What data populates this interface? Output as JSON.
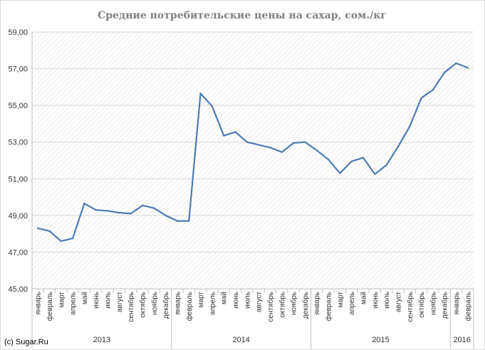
{
  "chart_data": {
    "type": "line",
    "title": "Средние потребительские цены на сахар, сом./кг",
    "xlabel": "",
    "ylabel": "",
    "ylim": [
      45,
      59
    ],
    "y_ticks": [
      "45,00",
      "47,00",
      "49,00",
      "51,00",
      "53,00",
      "55,00",
      "57,00",
      "59,00"
    ],
    "categories": [
      "январь",
      "февраль",
      "март",
      "апрель",
      "май",
      "июнь",
      "июль",
      "август",
      "сентябрь",
      "октябрь",
      "ноябрь",
      "декабрь",
      "январь",
      "февраль",
      "март",
      "апрель",
      "май",
      "июнь",
      "июль",
      "август",
      "сентябрь",
      "октябрь",
      "ноябрь",
      "декабрь",
      "январь",
      "февраль",
      "март",
      "апрель",
      "май",
      "июнь",
      "июль",
      "август",
      "сентябрь",
      "октябрь",
      "ноябрь",
      "декабрь",
      "январь",
      "февраль"
    ],
    "year_groups": [
      {
        "label": "2013",
        "count": 12
      },
      {
        "label": "2014",
        "count": 12
      },
      {
        "label": "2015",
        "count": 12
      },
      {
        "label": "2016",
        "count": 2
      }
    ],
    "series": [
      {
        "values": [
          48.3,
          48.15,
          47.6,
          47.75,
          49.65,
          49.3,
          49.25,
          49.15,
          49.1,
          49.55,
          49.4,
          49.0,
          48.7,
          48.7,
          55.65,
          54.95,
          53.35,
          53.55,
          53.0,
          52.85,
          52.7,
          52.45,
          52.95,
          53.0,
          52.55,
          52.05,
          51.3,
          51.95,
          52.15,
          51.25,
          51.75,
          52.75,
          53.85,
          55.4,
          55.85,
          56.8,
          57.3,
          57.05
        ],
        "color": "#4f7ab3"
      }
    ],
    "grid": true,
    "grid_color": "#d9d9d9",
    "plot_background": "hatched"
  },
  "watermark": "(c) Sugar.Ru"
}
